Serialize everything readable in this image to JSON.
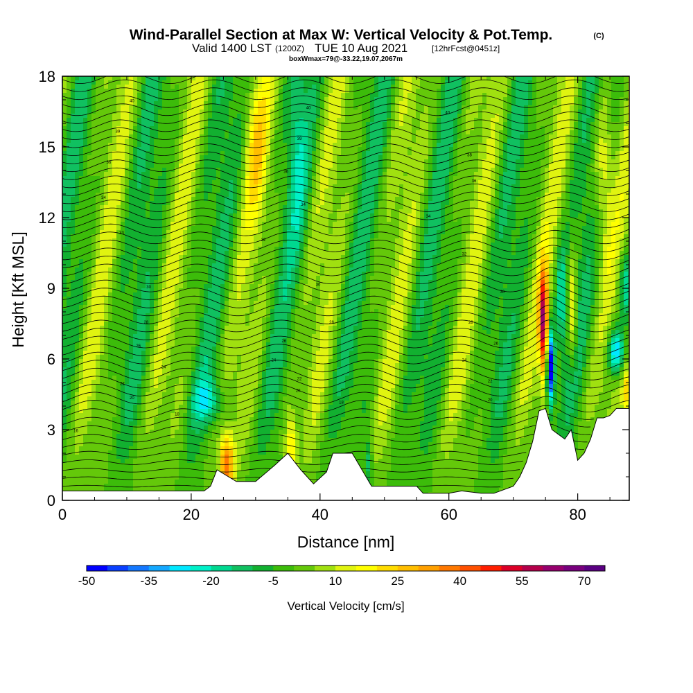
{
  "header": {
    "title": "Wind-Parallel Section at Max W: Vertical Velocity & Pot.Temp.",
    "copyright": "(C)",
    "valid_prefix": "Valid 1400 LST",
    "valid_utc": "(1200Z)",
    "valid_date": "TUE 10 Aug 2021",
    "forecast": "[12hrFcst@0451z]",
    "box_info": "boxWmax=79@-33.22,19.07,2067m"
  },
  "chart_data": {
    "type": "heatmap",
    "xlabel": "Distance [nm]",
    "ylabel": "Height [Kft MSL]",
    "xlim": [
      0,
      88
    ],
    "ylim": [
      0,
      18
    ],
    "x_ticks": [
      0,
      20,
      40,
      60,
      80
    ],
    "x_tick_labels": [
      "0",
      "20",
      "40",
      "60",
      "80"
    ],
    "y_ticks": [
      0,
      3,
      6,
      9,
      12,
      15,
      18
    ],
    "y_tick_labels": [
      "0",
      "3",
      "6",
      "9",
      "12",
      "15",
      "18"
    ],
    "grid": false,
    "colorbar": {
      "title": "Vertical Velocity [cm/s]",
      "min": -50,
      "max": 75,
      "step": 5,
      "tick_values": [
        -50,
        -35,
        -20,
        -5,
        10,
        25,
        40,
        55,
        70
      ],
      "tick_labels": [
        "-50",
        "-35",
        "-20",
        "-5",
        "10",
        "25",
        "40",
        "55",
        "70"
      ],
      "colors": [
        "#0000ff",
        "#0a40ff",
        "#1478ff",
        "#14a8ff",
        "#00e8ff",
        "#00f0c8",
        "#00d890",
        "#10c060",
        "#12b030",
        "#3cbc0a",
        "#64c80a",
        "#a0e010",
        "#e0f410",
        "#ffff00",
        "#ffdc00",
        "#ffbe00",
        "#ffa000",
        "#ff7800",
        "#ff5000",
        "#ff1e00",
        "#dc0028",
        "#b4004b",
        "#96006e",
        "#78007d",
        "#5a0082"
      ]
    },
    "terrain_profile": {
      "x": [
        0,
        22,
        23,
        24,
        27,
        30,
        33,
        35,
        37,
        39,
        41,
        42,
        45,
        48,
        50,
        55,
        56,
        60,
        62,
        65,
        67,
        70,
        71,
        72,
        73,
        74,
        75,
        76,
        77,
        78,
        79,
        80,
        81,
        82,
        83,
        84,
        85,
        86,
        88
      ],
      "height_kft": [
        0.4,
        0.4,
        0.6,
        1.3,
        0.8,
        0.8,
        1.5,
        2.0,
        1.3,
        0.7,
        1.2,
        2.0,
        2.0,
        0.6,
        0.6,
        0.6,
        0.3,
        0.3,
        0.4,
        0.3,
        0.3,
        0.6,
        1.0,
        1.6,
        2.5,
        3.8,
        3.9,
        3.0,
        2.8,
        2.6,
        3.0,
        1.7,
        2.0,
        2.6,
        3.5,
        3.5,
        3.6,
        3.9,
        3.9
      ]
    },
    "isentrope_labels": [
      {
        "text": "40",
        "x": 10.8,
        "y": 16.9
      },
      {
        "text": "39",
        "x": 8.6,
        "y": 15.6
      },
      {
        "text": "36",
        "x": 7.2,
        "y": 14.3
      },
      {
        "text": "34",
        "x": 6.4,
        "y": 12.8
      },
      {
        "text": "33",
        "x": 9.2,
        "y": 11.3
      },
      {
        "text": "30",
        "x": 13.4,
        "y": 9.0
      },
      {
        "text": "28",
        "x": 13.0,
        "y": 7.5
      },
      {
        "text": "26",
        "x": 11.8,
        "y": 6.5
      },
      {
        "text": "24",
        "x": 15.7,
        "y": 5.6
      },
      {
        "text": "22",
        "x": 9.3,
        "y": 4.9
      },
      {
        "text": "20",
        "x": 10.8,
        "y": 4.3
      },
      {
        "text": "18",
        "x": 17.8,
        "y": 3.6
      },
      {
        "text": "16",
        "x": 2.1,
        "y": 2.9
      },
      {
        "text": "40",
        "x": 38.2,
        "y": 16.6
      },
      {
        "text": "39",
        "x": 36.8,
        "y": 15.3
      },
      {
        "text": "36",
        "x": 34.7,
        "y": 13.9
      },
      {
        "text": "34",
        "x": 37.4,
        "y": 12.5
      },
      {
        "text": "32",
        "x": 31.2,
        "y": 11.0
      },
      {
        "text": "30",
        "x": 39.7,
        "y": 9.1
      },
      {
        "text": "28",
        "x": 41.8,
        "y": 7.5
      },
      {
        "text": "26",
        "x": 34.4,
        "y": 6.7
      },
      {
        "text": "24",
        "x": 32.8,
        "y": 5.9
      },
      {
        "text": "22",
        "x": 36.8,
        "y": 5.1
      },
      {
        "text": "20",
        "x": 36.6,
        "y": 4.6
      },
      {
        "text": "18",
        "x": 43.3,
        "y": 4.1
      },
      {
        "text": "40",
        "x": 59.8,
        "y": 16.4
      },
      {
        "text": "38",
        "x": 63.2,
        "y": 14.6
      },
      {
        "text": "36",
        "x": 63.9,
        "y": 13.5
      },
      {
        "text": "34",
        "x": 56.8,
        "y": 12.0
      },
      {
        "text": "32",
        "x": 62.4,
        "y": 10.4
      },
      {
        "text": "30",
        "x": 68.3,
        "y": 8.8
      },
      {
        "text": "28",
        "x": 63.4,
        "y": 7.5
      },
      {
        "text": "26",
        "x": 67.3,
        "y": 6.6
      },
      {
        "text": "24",
        "x": 62.4,
        "y": 5.9
      },
      {
        "text": "22",
        "x": 66.4,
        "y": 5.0
      },
      {
        "text": "20",
        "x": 66.4,
        "y": 4.2
      }
    ]
  }
}
